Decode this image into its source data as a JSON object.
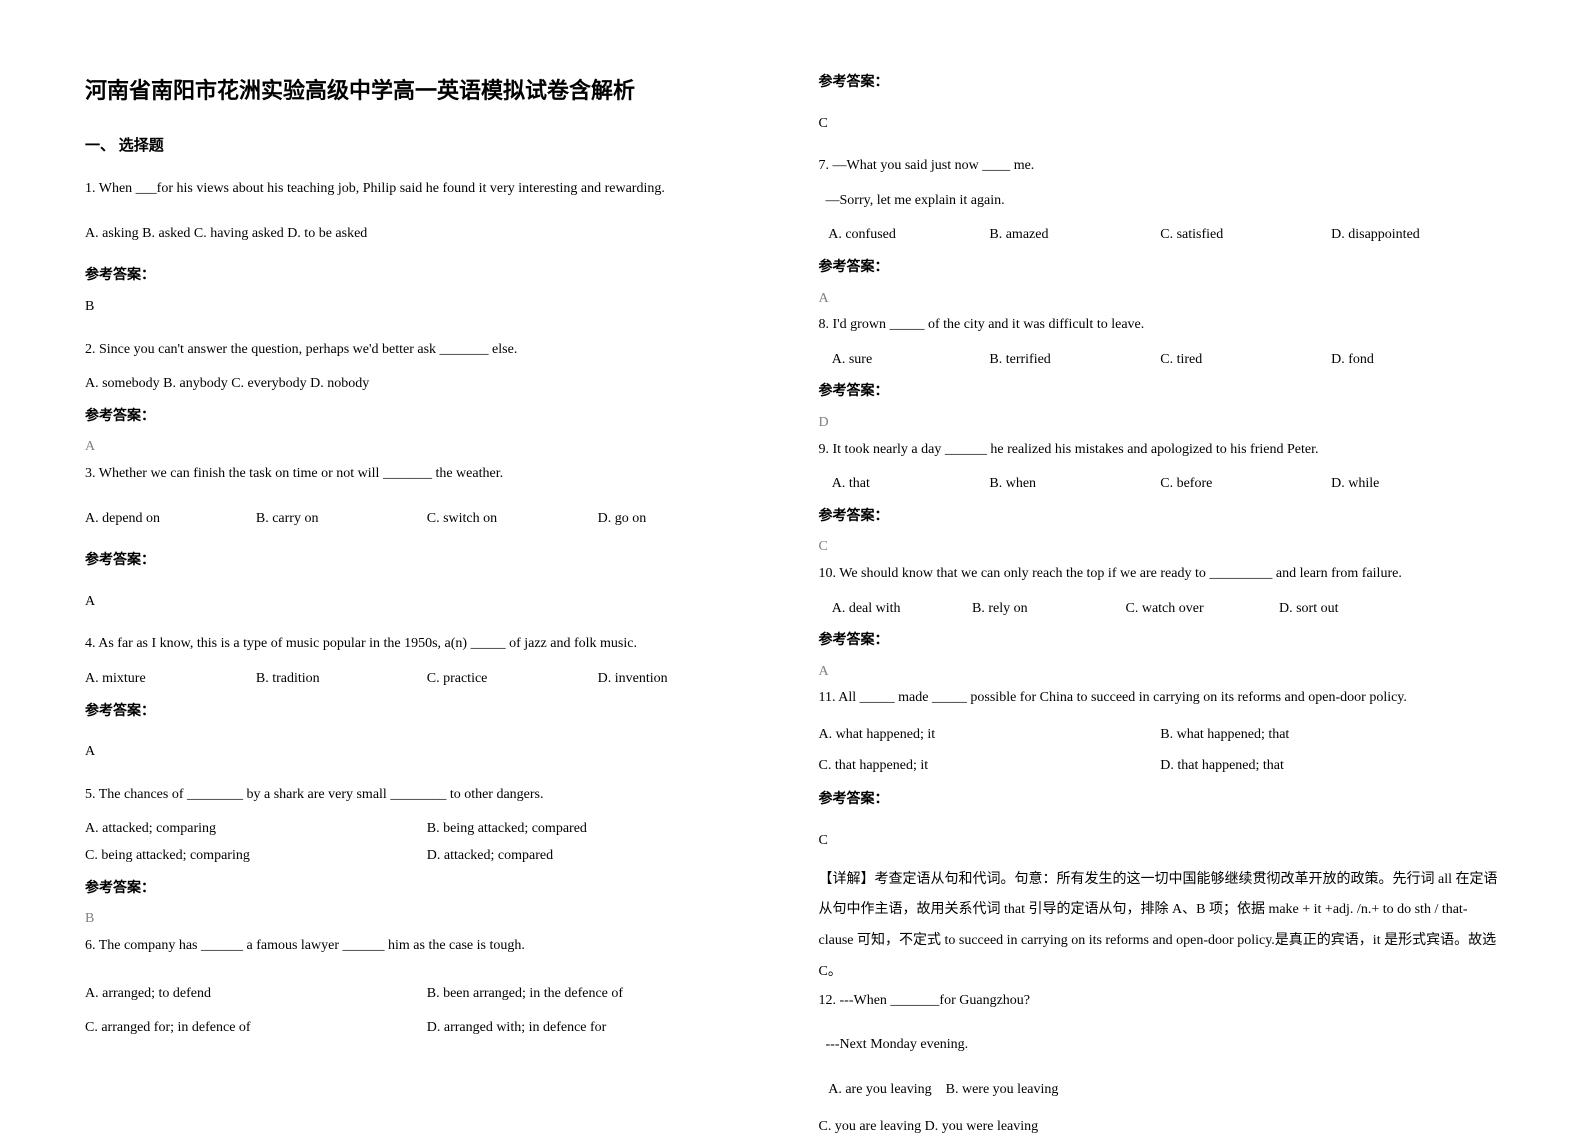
{
  "title": "河南省南阳市花洲实验高级中学高一英语模拟试卷含解析",
  "section_heading": "一、 选择题",
  "answer_label": "参考答案：",
  "left": {
    "q1": {
      "text": "1. When ___for his views about his teaching job, Philip said he found it very interesting and rewarding.",
      "opts": "A. asking    B. asked    C. having asked    D. to be asked",
      "ans": "B"
    },
    "q2": {
      "text": "2. Since you can't answer the question, perhaps we'd better ask _______ else.",
      "opts": "A. somebody    B. anybody    C. everybody    D. nobody",
      "ans": "A"
    },
    "q3": {
      "text": "3. Whether we can finish the task on time or not will _______ the weather.",
      "a": "A. depend on",
      "b": "B. carry on",
      "c": "C. switch on",
      "d": "D. go on",
      "ans": "A"
    },
    "q4": {
      "text": " 4.  As far as I know, this is a type of music popular in the 1950s, a(n) _____ of jazz and folk music.",
      "a": " A. mixture",
      "b": "B. tradition",
      "c": "C. practice",
      "d": "D. invention",
      "ans": "A"
    },
    "q5": {
      "text": "5. The chances of ________ by a shark are very small ________ to other dangers.",
      "a": " A. attacked; comparing",
      "b": "B. being attacked; compared",
      "c": " C. being attacked; comparing",
      "d": "D. attacked; compared",
      "ans": "B"
    },
    "q6": {
      "text": "6. The company has ______ a famous lawyer ______ him as the case is tough.",
      "a": "A. arranged; to defend",
      "b": "B. been arranged; in the defence of",
      "c": "C. arranged for; in defence of",
      "d": "D. arranged with; in defence for"
    }
  },
  "right": {
    "q6ans": "C",
    "q7": {
      "l1": "7. —What you said just now ____ me.",
      "l2": "  —Sorry, let me explain it again.",
      "a": "   A. confused",
      "b": "B. amazed",
      "c": "C. satisfied",
      "d": "D. disappointed",
      "ans": "A"
    },
    "q8": {
      "text": "8. I'd grown _____ of the city and it was difficult to leave.",
      "a": "    A. sure",
      "b": "B. terrified",
      "c": "C. tired",
      "d": "D. fond",
      "ans": "D"
    },
    "q9": {
      "text": "9. It took nearly a day ______ he realized his mistakes and apologized to his friend Peter.",
      "a": "    A. that",
      "b": "B. when",
      "c": "C. before",
      "d": "D. while",
      "ans": "C"
    },
    "q10": {
      "text": "10. We should know that we can only reach the top if we are ready to _________ and learn from failure.",
      "a": "    A. deal with",
      "b": "B. rely on",
      "c": "C. watch over",
      "d": "D. sort out",
      "ans": "A"
    },
    "q11": {
      "text": "11. All _____ made _____ possible for China to succeed in carrying on its reforms and open-door policy.",
      "a": "A. what happened; it",
      "b": "B. what happened; that",
      "c": "C. that happened; it",
      "d": "D. that happened; that",
      "ans": "C",
      "explain": "【详解】考查定语从句和代词。句意：所有发生的这一切中国能够继续贯彻改革开放的政策。先行词 all 在定语从句中作主语，故用关系代词 that 引导的定语从句，排除 A、B 项；依据  make + it +adj. /n.+ to do sth / that-clause 可知，不定式 to succeed in carrying on its reforms and open-door policy.是真正的宾语，it 是形式宾语。故选 C。"
    },
    "q12": {
      "l1": "12. ---When _______for Guangzhou?",
      "l2": "  ---Next Monday evening.",
      "a": "   A. are you leaving    B. were you leaving",
      "c": "C. you are leaving    D. you were leaving"
    }
  }
}
